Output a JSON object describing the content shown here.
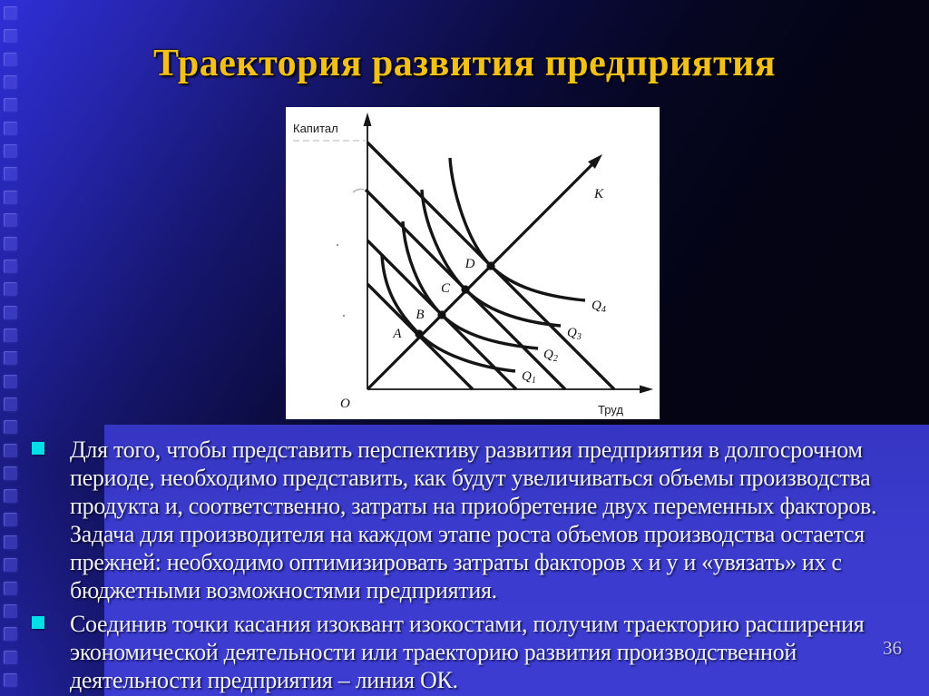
{
  "slide": {
    "title": "Траектория развития предприятия",
    "page_number": "36",
    "colors": {
      "title": "#F2C01A",
      "body_text": "#EEEEFA",
      "bullet_marker": "#00DFE8",
      "highlight_box": "#3B3BCE",
      "background_top_left": "#2F2FD8",
      "background_dark": "#030310",
      "diagram_background": "#FFFFFF",
      "diagram_ink": "#151515"
    },
    "bullets": [
      {
        "lines": [
          "Для того, чтобы представить перспективу развития предприятия в долгосрочном",
          "периоде, необходимо представить, как будут увеличиваться объемы производства",
          "продукта и, соответственно, затраты на приобретение двух переменных факторов.",
          "Задача для производителя на каждом этапе роста объемов производства остается",
          "прежней: необходимо оптимизировать затраты факторов х и у и «увязать» их с",
          "бюджетными возможностями предприятия."
        ]
      },
      {
        "lines": [
          "Соединив точки касания изоквант изокостами, получим траекторию расширения",
          "экономической деятельности или траекторию развития производственной",
          "деятельности предприятия – линия ОК."
        ]
      }
    ],
    "diagram": {
      "y_axis_label": "Капитал",
      "x_axis_label": "Труд",
      "origin_label": "O",
      "ray_label": "K",
      "isocost_lines": 4,
      "points": [
        "A",
        "B",
        "C",
        "D"
      ],
      "isoquants": [
        {
          "base": "Q",
          "sub": "1"
        },
        {
          "base": "Q",
          "sub": "2"
        },
        {
          "base": "Q",
          "sub": "3"
        },
        {
          "base": "Q",
          "sub": "4"
        }
      ]
    }
  }
}
